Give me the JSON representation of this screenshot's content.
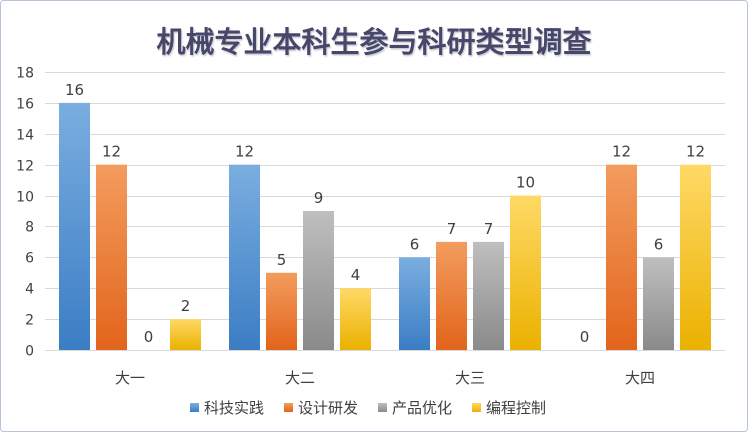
{
  "chart_data": {
    "type": "bar",
    "title": "机械专业本科生参与科研类型调查",
    "categories": [
      "大一",
      "大二",
      "大三",
      "大四"
    ],
    "series": [
      {
        "name": "科技实践",
        "values": [
          16,
          12,
          6,
          0
        ],
        "color": "#7aaee0",
        "color_dark": "#3b7dc4"
      },
      {
        "name": "设计研发",
        "values": [
          12,
          5,
          7,
          12
        ],
        "color": "#f39c5e",
        "color_dark": "#e2641b"
      },
      {
        "name": "产品优化",
        "values": [
          0,
          9,
          7,
          6
        ],
        "color": "#bfbfbf",
        "color_dark": "#8a8a8a"
      },
      {
        "name": "编程控制",
        "values": [
          2,
          4,
          10,
          12
        ],
        "color": "#ffd966",
        "color_dark": "#ebb100"
      }
    ],
    "ylim": [
      0,
      18
    ],
    "yticks": [
      0,
      2,
      4,
      6,
      8,
      10,
      12,
      14,
      16,
      18
    ],
    "grid": true,
    "data_labels": true,
    "legend": "bottom",
    "xlabel": "",
    "ylabel": ""
  }
}
